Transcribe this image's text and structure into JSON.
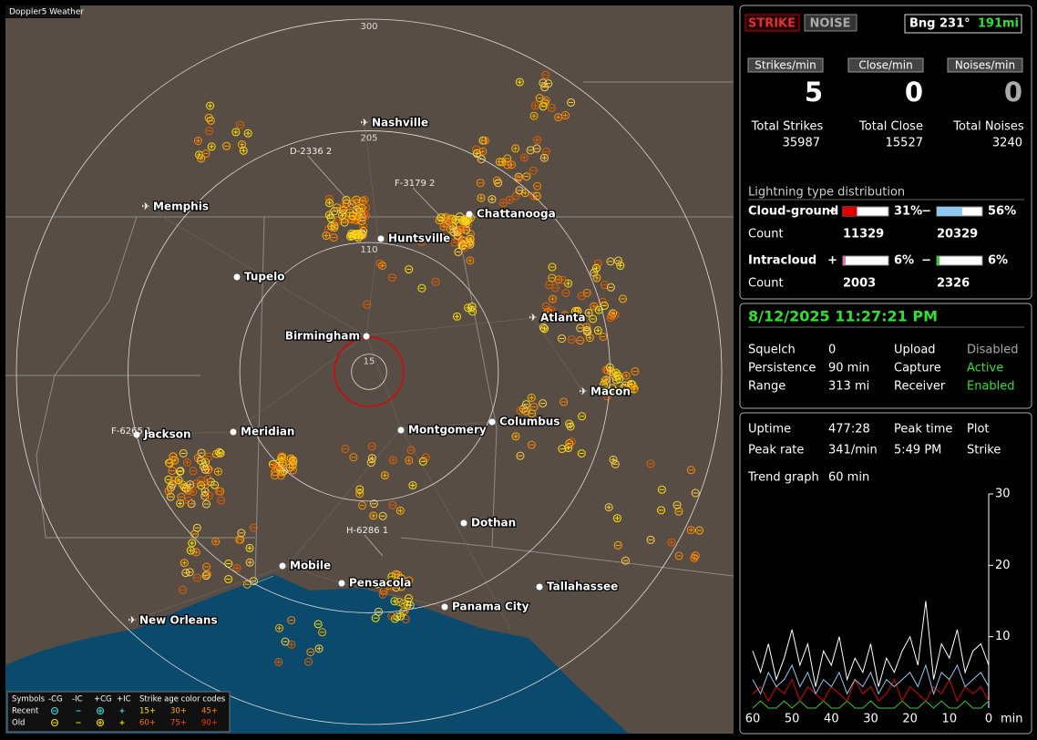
{
  "map": {
    "title": "Doppler5 Weather",
    "cities": [
      "Nashville",
      "Memphis",
      "Chattanooga",
      "Huntsville",
      "Tupelo",
      "Atlanta",
      "Birmingham",
      "Macon",
      "Jackson",
      "Meridian",
      "Montgomery",
      "Columbus",
      "Dothan",
      "Mobile",
      "Pensacola",
      "Tallahassee",
      "Panama City",
      "New Orleans"
    ],
    "ranges": [
      300,
      205,
      110,
      15
    ],
    "storms": [
      "D-2336 2",
      "F-3179 2",
      "F-6265 1",
      "H-6286 1"
    ]
  },
  "legend": {
    "header": [
      "Symbols",
      "-CG",
      "-IC",
      "+CG",
      "+IC",
      "Strike age color codes"
    ],
    "rows": [
      "Recent",
      "Old"
    ],
    "ages": [
      "15+",
      "30+",
      "45+",
      "60+",
      "75+",
      "90+"
    ]
  },
  "panel": {
    "modes": [
      "STRIKE",
      "NOISE"
    ],
    "bearing": "Bng 231°",
    "distance": "191mi",
    "rates": [
      {
        "label": "Strikes/min",
        "value": 5
      },
      {
        "label": "Close/min",
        "value": 0
      },
      {
        "label": "Noises/min",
        "value": 0
      }
    ],
    "totals": [
      {
        "label": "Total Strikes",
        "value": 35987
      },
      {
        "label": "Total Close",
        "value": 15527
      },
      {
        "label": "Total Noises",
        "value": 3240
      }
    ],
    "distribution": {
      "title": "Lightning type distribution",
      "count_label": "Count",
      "types": [
        {
          "label": "Cloud-ground",
          "parts": [
            {
              "sign": "+",
              "value": 31,
              "value_label": "31%",
              "count": 11329,
              "color": "#e00000"
            },
            {
              "sign": "−",
              "value": 56,
              "value_label": "56%",
              "count": 20329,
              "color": "#8ec8f0"
            }
          ]
        },
        {
          "label": "Intracloud",
          "parts": [
            {
              "sign": "+",
              "value": 6,
              "value_label": "6%",
              "count": 2003,
              "color": "#e070b0"
            },
            {
              "sign": "−",
              "value": 6,
              "value_label": "6%",
              "count": 2326,
              "color": "#30d030"
            }
          ]
        }
      ]
    },
    "datetime": "8/12/2025 11:27:21 PM",
    "status": [
      [
        "Squelch",
        "0",
        "Upload",
        "Disabled"
      ],
      [
        "Persistence",
        "90 min",
        "Capture",
        "Active"
      ],
      [
        "Range",
        "313 mi",
        "Receiver",
        "Enabled"
      ]
    ],
    "stats": [
      [
        "Uptime",
        "477:28",
        "Peak time",
        "Plot"
      ],
      [
        "Peak rate",
        "341/min",
        "5:49 PM",
        "Strike"
      ]
    ],
    "trend_label": "Trend graph",
    "trend_period": "60 min"
  },
  "chart_data": {
    "type": "line",
    "x": [
      60,
      58,
      56,
      54,
      52,
      50,
      48,
      46,
      44,
      42,
      40,
      38,
      36,
      34,
      32,
      30,
      28,
      26,
      24,
      22,
      20,
      18,
      16,
      14,
      12,
      10,
      8,
      6,
      4,
      2,
      0
    ],
    "xticks": [
      60,
      50,
      40,
      30,
      20,
      10,
      0
    ],
    "xlim": [
      60,
      0
    ],
    "x_unit": "min",
    "ylim": [
      0,
      30
    ],
    "yticks": [
      10,
      20,
      30
    ],
    "series": [
      {
        "name": "Total",
        "color": "#ffffff",
        "values": [
          8,
          5,
          9,
          4,
          7,
          11,
          6,
          9,
          3,
          8,
          6,
          10,
          4,
          7,
          5,
          9,
          3,
          7,
          5,
          8,
          10,
          6,
          15,
          4,
          9,
          7,
          11,
          5,
          8,
          9,
          6
        ]
      },
      {
        "name": "-CG",
        "color": "#8ec8f0",
        "values": [
          4,
          2,
          5,
          3,
          4,
          6,
          3,
          5,
          2,
          4,
          3,
          5,
          2,
          4,
          3,
          5,
          2,
          4,
          3,
          4,
          5,
          3,
          6,
          2,
          5,
          4,
          6,
          3,
          4,
          5,
          3
        ]
      },
      {
        "name": "+CG",
        "color": "#e00000",
        "values": [
          2,
          3,
          1,
          3,
          2,
          4,
          1,
          3,
          2,
          1,
          3,
          2,
          1,
          4,
          2,
          3,
          1,
          2,
          4,
          1,
          3,
          2,
          1,
          3,
          2,
          4,
          1,
          3,
          2,
          3,
          1
        ]
      },
      {
        "name": "IC",
        "color": "#30d030",
        "values": [
          0,
          1,
          0,
          0,
          1,
          0,
          1,
          0,
          0,
          1,
          0,
          0,
          1,
          0,
          0,
          1,
          0,
          0,
          0,
          1,
          0,
          0,
          1,
          0,
          1,
          0,
          0,
          1,
          0,
          0,
          1
        ]
      }
    ]
  }
}
